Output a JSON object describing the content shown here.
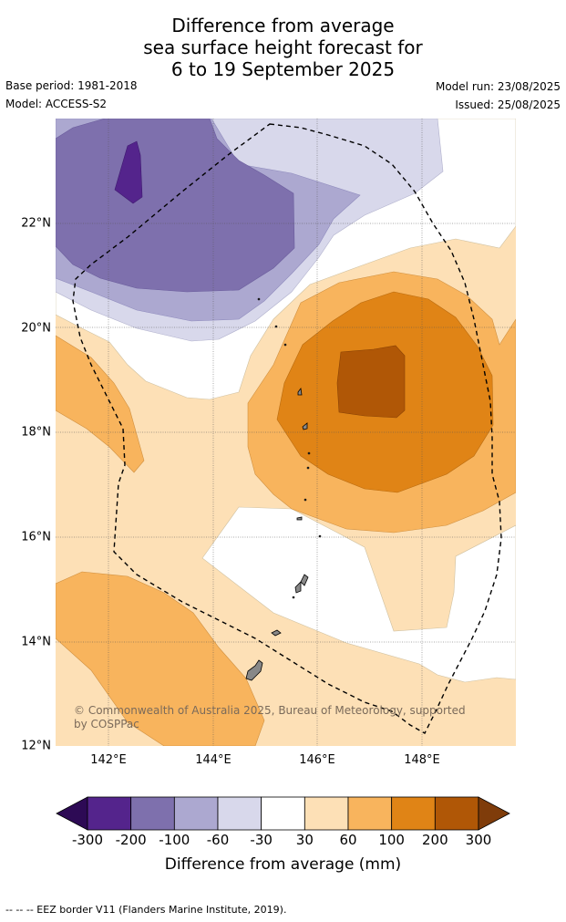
{
  "title": {
    "line1": "Difference from average",
    "line2": "sea surface height forecast for",
    "line3": "6 to 19 September 2025"
  },
  "meta": {
    "base_period": "Base period: 1981-2018",
    "model": "Model: ACCESS-S2",
    "model_run": "Model run: 23/08/2025",
    "issued": "Issued: 25/08/2025"
  },
  "axes": {
    "lat_labels": [
      "22°N",
      "20°N",
      "18°N",
      "16°N",
      "14°N",
      "12°N"
    ],
    "lon_labels": [
      "142°E",
      "144°E",
      "146°E",
      "148°E"
    ]
  },
  "credit": "© Commonwealth of Australia 2025, Bureau of Meteorology, supported by COSPPac",
  "colorbar": {
    "title": "Difference from average (mm)",
    "labels": [
      "-300",
      "-200",
      "-100",
      "-60",
      "-30",
      "30",
      "60",
      "100",
      "200",
      "300"
    ],
    "colors": [
      "#2d0a55",
      "#54248c",
      "#7e70ad",
      "#aca8d0",
      "#d8d8eb",
      "#ffffff",
      "#fde0b6",
      "#f8b45d",
      "#e08416",
      "#b05706",
      "#7f3c0a"
    ]
  },
  "footnote": "--  --  -- EEZ border V11 (Flanders Marine Institute, 2019)."
}
